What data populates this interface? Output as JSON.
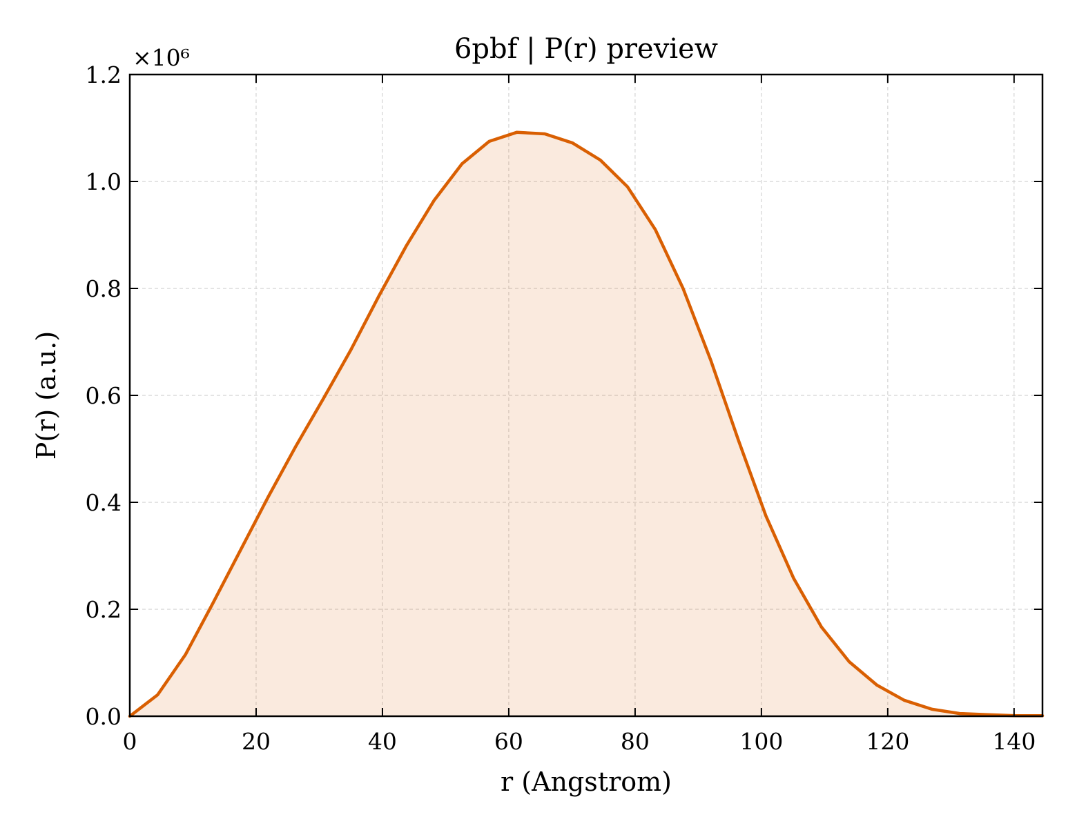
{
  "chart_data": {
    "type": "area",
    "title": "6pbf | P(r) preview",
    "xlabel": "r (Angstrom)",
    "ylabel": "P(r) (a.u.)",
    "y_multiplier_label": "×10⁶",
    "xlim": [
      0,
      144.5
    ],
    "ylim": [
      0,
      1.2
    ],
    "x_ticks": [
      0,
      20,
      40,
      60,
      80,
      100,
      120,
      140
    ],
    "y_ticks": [
      0.0,
      0.2,
      0.4,
      0.6,
      0.8,
      1.0,
      1.2
    ],
    "x_tick_labels": [
      "0",
      "20",
      "40",
      "60",
      "80",
      "100",
      "120",
      "140"
    ],
    "y_tick_labels": [
      "0.0",
      "0.2",
      "0.4",
      "0.6",
      "0.8",
      "1.0",
      "1.2"
    ],
    "grid": true,
    "colors": {
      "line": "#d95f02",
      "fill": "#d95f02"
    },
    "series": [
      {
        "x": [
          0,
          4.4,
          8.8,
          13.1,
          17.5,
          21.9,
          26.3,
          30.7,
          35.0,
          39.4,
          43.8,
          48.2,
          52.6,
          56.9,
          61.3,
          65.7,
          70.1,
          74.5,
          78.8,
          83.2,
          87.6,
          92.0,
          96.4,
          100.7,
          105.1,
          109.5,
          113.9,
          118.3,
          122.6,
          127.0,
          131.4,
          135.8,
          140.2,
          144.5
        ],
        "values": [
          0.0,
          0.04,
          0.115,
          0.21,
          0.31,
          0.41,
          0.505,
          0.595,
          0.685,
          0.785,
          0.88,
          0.965,
          1.033,
          1.075,
          1.092,
          1.089,
          1.072,
          1.04,
          0.99,
          0.91,
          0.8,
          0.665,
          0.515,
          0.375,
          0.258,
          0.167,
          0.102,
          0.058,
          0.03,
          0.013,
          0.005,
          0.003,
          0.001,
          0.001
        ]
      }
    ]
  }
}
